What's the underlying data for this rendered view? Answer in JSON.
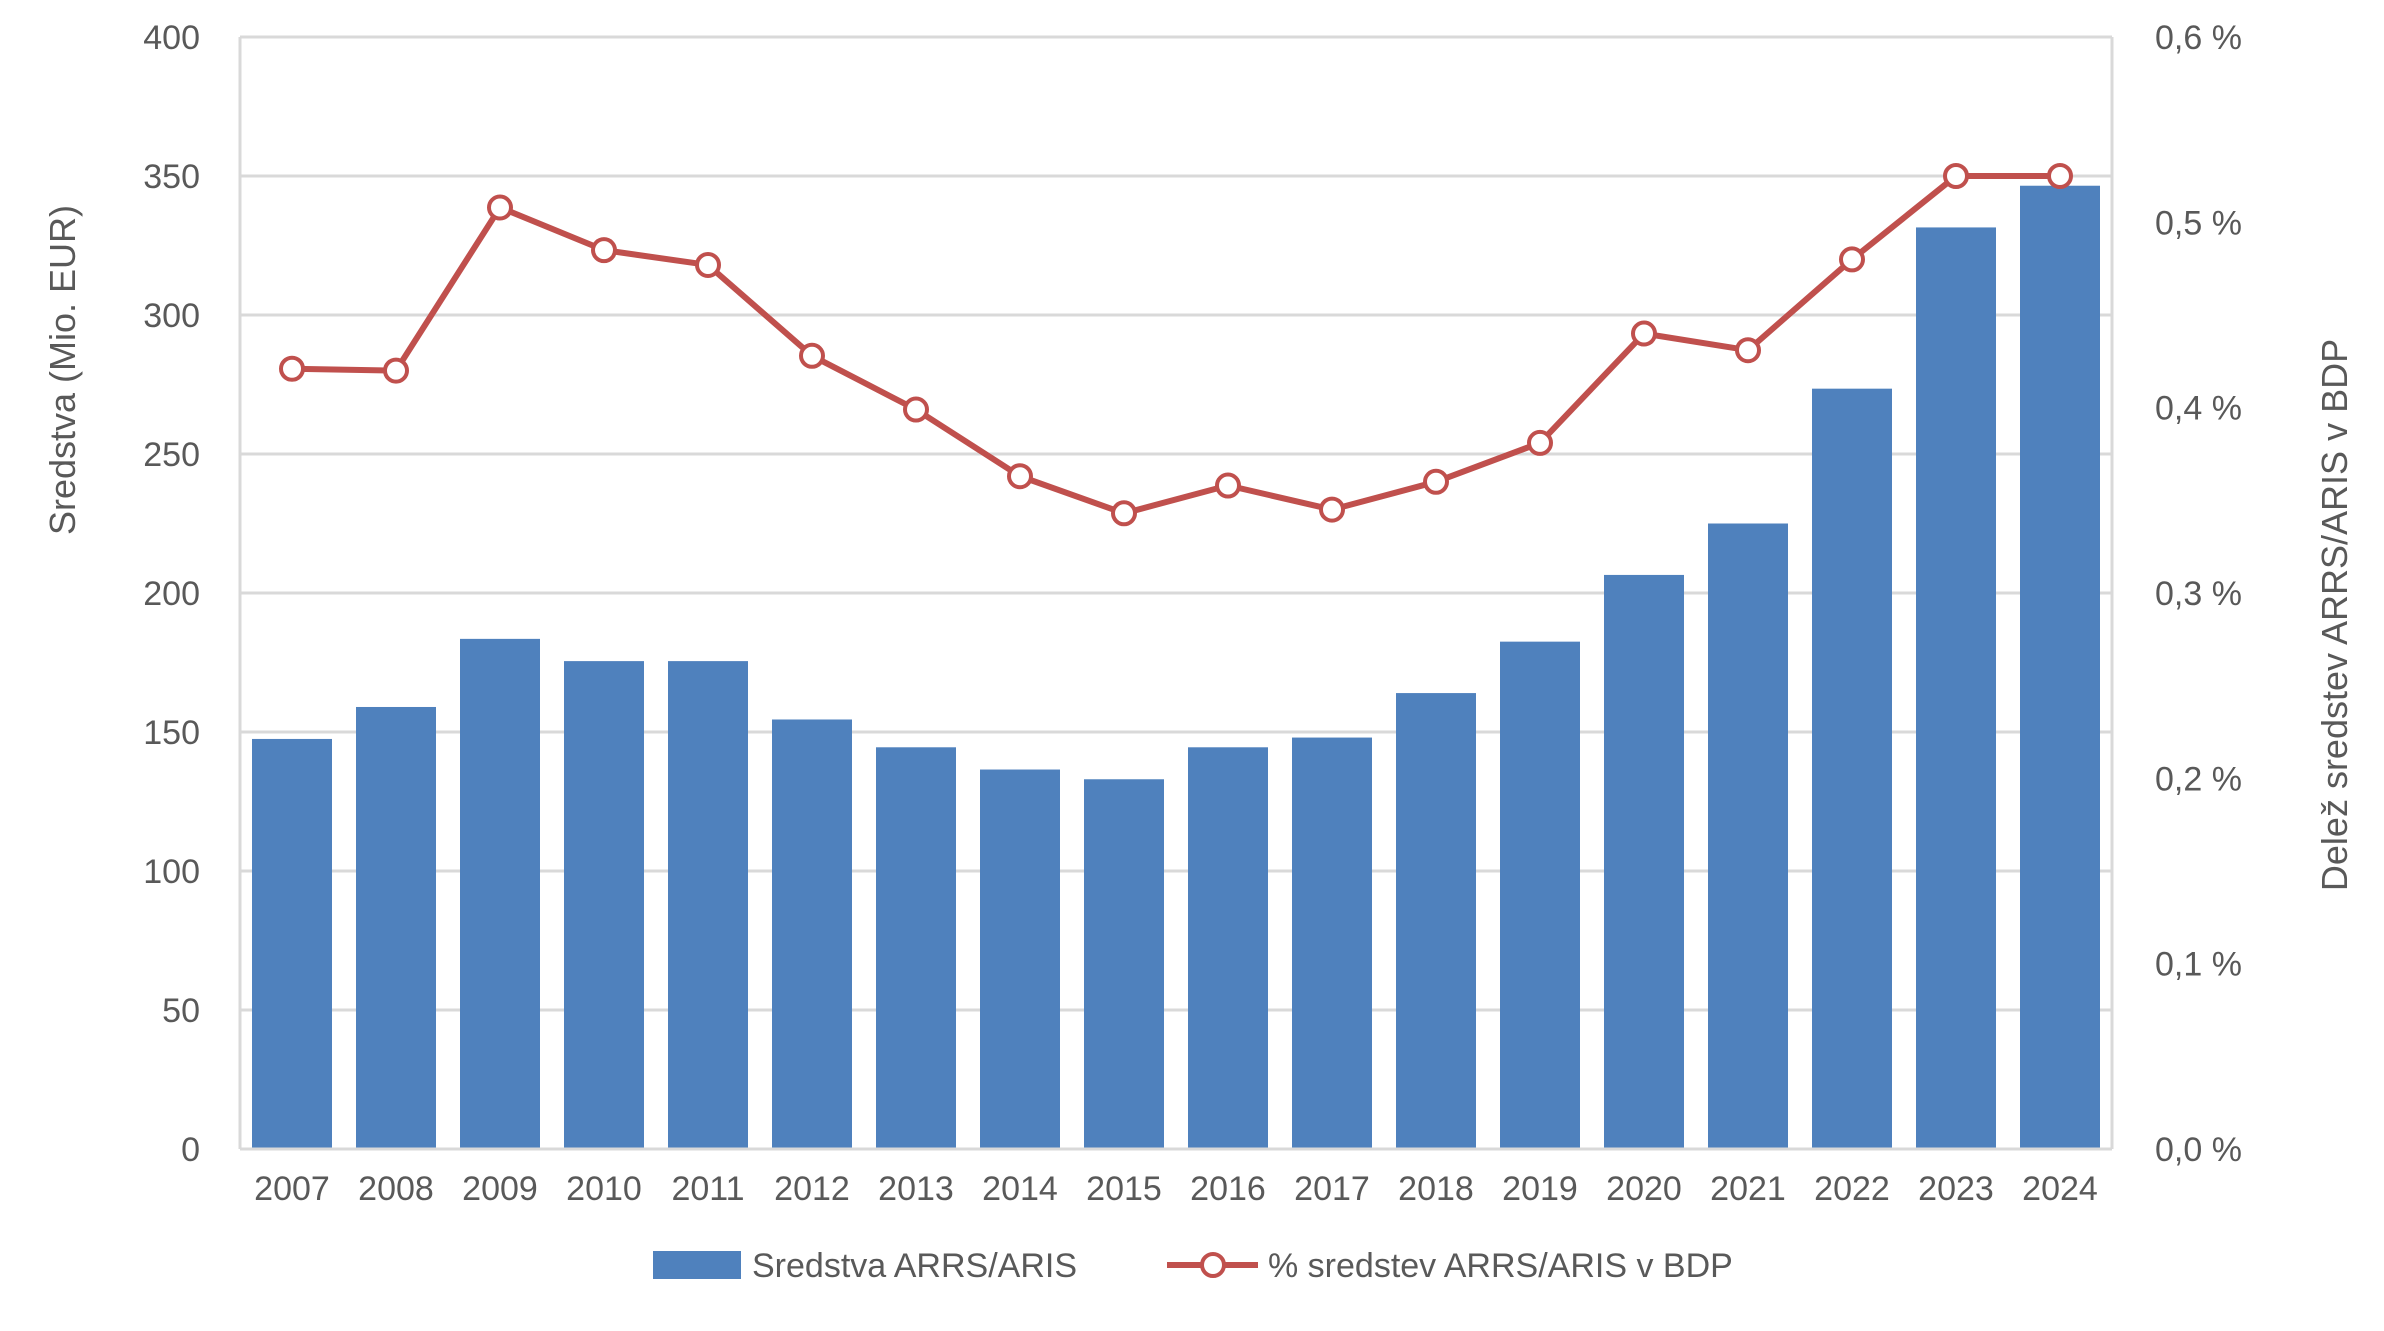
{
  "chart_data": {
    "type": "bar",
    "categories": [
      "2007",
      "2008",
      "2009",
      "2010",
      "2011",
      "2012",
      "2013",
      "2014",
      "2015",
      "2016",
      "2017",
      "2018",
      "2019",
      "2020",
      "2021",
      "2022",
      "2023",
      "2024"
    ],
    "series": [
      {
        "name": "Sredstva ARRS/ARIS",
        "type": "bar",
        "axis": "left",
        "color": "#4F81BD",
        "values": [
          147.5,
          159,
          183.5,
          175.5,
          175.5,
          154.5,
          144.5,
          136.5,
          133,
          144.5,
          148,
          164,
          182.5,
          206.5,
          225,
          273.5,
          331.5,
          346.5
        ]
      },
      {
        "name": "% sredstev ARRS/ARIS v BDP",
        "type": "line",
        "axis": "right",
        "color": "#C0504D",
        "marker": "circle-hollow",
        "values": [
          0.421,
          0.42,
          0.508,
          0.485,
          0.477,
          0.428,
          0.399,
          0.363,
          0.343,
          0.358,
          0.345,
          0.36,
          0.381,
          0.44,
          0.431,
          0.48,
          0.525,
          0.525
        ]
      }
    ],
    "ylabel": "Sredstva (Mio. EUR)",
    "ylabel_right": "Delež sredstev ARRS/ARIS v BDP",
    "ylim": [
      0,
      400
    ],
    "ylim_right": [
      0,
      0.6
    ],
    "y_ticks": [
      "0",
      "50",
      "100",
      "150",
      "200",
      "250",
      "300",
      "350",
      "400"
    ],
    "y_ticks_right": [
      "0,0 %",
      "0,1 %",
      "0,2 %",
      "0,3 %",
      "0,4 %",
      "0,5 %",
      "0,6 %"
    ],
    "grid": true,
    "legend_position": "bottom"
  }
}
